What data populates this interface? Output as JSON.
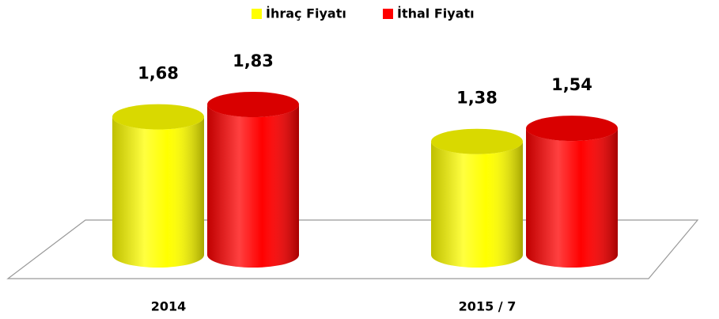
{
  "chart_data": {
    "type": "bar",
    "categories": [
      "2014",
      "2015 / 7"
    ],
    "series": [
      {
        "name": "İhraç Fiyatı",
        "color": "#ffff00",
        "values": [
          1.68,
          1.38
        ],
        "value_labels": [
          "1,68",
          "1,38"
        ]
      },
      {
        "name": "İthal Fiyatı",
        "color": "#ff0000",
        "values": [
          1.83,
          1.54
        ],
        "value_labels": [
          "1,83",
          "1,54"
        ]
      }
    ]
  }
}
